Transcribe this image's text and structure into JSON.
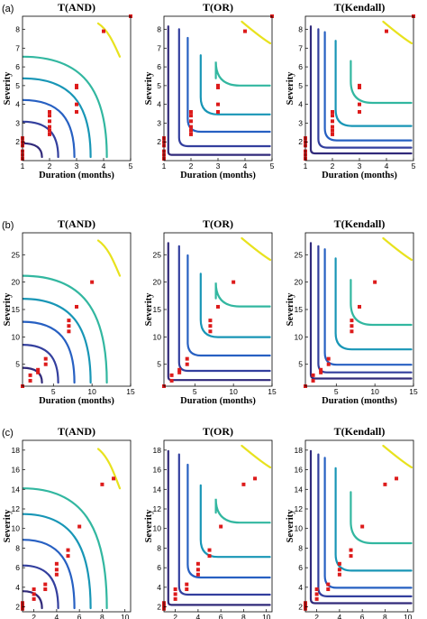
{
  "rows": [
    {
      "label": "(a)",
      "xlim": [
        1,
        5
      ],
      "ylim": [
        1,
        8.7
      ],
      "xticks": [
        1,
        2,
        3,
        4,
        5
      ],
      "yticks": [
        2,
        3,
        4,
        5,
        6,
        7,
        8
      ],
      "xlabel": "Duration (months)",
      "ylabel": "Severity",
      "points": [
        [
          1,
          1.1
        ],
        [
          1,
          1.3
        ],
        [
          1,
          1.5
        ],
        [
          1,
          1.8
        ],
        [
          1,
          2.0
        ],
        [
          1,
          2.2
        ],
        [
          2,
          2.4
        ],
        [
          2,
          2.6
        ],
        [
          2,
          2.8
        ],
        [
          2,
          3.1
        ],
        [
          2,
          3.4
        ],
        [
          2,
          3.6
        ],
        [
          3,
          3.6
        ],
        [
          3,
          4.0
        ],
        [
          3,
          4.9
        ],
        [
          3,
          5.0
        ],
        [
          4,
          7.9
        ],
        [
          5,
          8.7
        ]
      ]
    },
    {
      "label": "(b)",
      "xlim": [
        1,
        15
      ],
      "ylim": [
        1,
        29
      ],
      "xticks": [
        5,
        10,
        15
      ],
      "yticks": [
        5,
        10,
        15,
        20,
        25
      ],
      "xlabel": "Duration (months)",
      "ylabel": "Severity",
      "points": [
        [
          1,
          1
        ],
        [
          2,
          2
        ],
        [
          2,
          3
        ],
        [
          3,
          3.5
        ],
        [
          3,
          4
        ],
        [
          4,
          5
        ],
        [
          4,
          6
        ],
        [
          7,
          11
        ],
        [
          7,
          12
        ],
        [
          7,
          13
        ],
        [
          8,
          15.5
        ],
        [
          10,
          20
        ]
      ]
    },
    {
      "label": "(c)",
      "xlim": [
        1,
        10.5
      ],
      "ylim": [
        1.5,
        19
      ],
      "xticks": [
        2,
        4,
        6,
        8,
        10
      ],
      "yticks": [
        2,
        4,
        6,
        8,
        10,
        12,
        14,
        16,
        18
      ],
      "xlabel": "Duration (months)",
      "ylabel": "Severity",
      "points": [
        [
          1,
          1.8
        ],
        [
          1,
          2.0
        ],
        [
          1,
          2.2
        ],
        [
          1,
          2.4
        ],
        [
          2,
          2.8
        ],
        [
          2,
          3.3
        ],
        [
          2,
          3.8
        ],
        [
          3,
          3.8
        ],
        [
          3,
          4.3
        ],
        [
          4,
          5.3
        ],
        [
          4,
          5.8
        ],
        [
          4,
          6.4
        ],
        [
          5,
          7.2
        ],
        [
          5,
          7.8
        ],
        [
          6,
          10.2
        ],
        [
          8,
          14.5
        ],
        [
          9,
          15.1
        ]
      ]
    }
  ],
  "chart_data": [
    {
      "type": "line",
      "title": "T(AND)",
      "xlabel": "Duration (months)",
      "ylabel": "Severity",
      "xlim": [
        1,
        5
      ],
      "ylim": [
        1,
        8.7
      ],
      "contour_levels": [
        2,
        5,
        10,
        20,
        50,
        100
      ],
      "colormap": "parula"
    },
    {
      "type": "line",
      "title": "T(OR)",
      "xlabel": "Duration (months)",
      "ylabel": "Severity",
      "xlim": [
        1,
        5
      ],
      "ylim": [
        1,
        8.7
      ],
      "contour_levels": [
        2,
        5,
        10,
        20,
        50,
        100
      ],
      "colormap": "parula"
    },
    {
      "type": "line",
      "title": "T(Kendall)",
      "xlabel": "Duration (months)",
      "ylabel": "Severity",
      "xlim": [
        1,
        5
      ],
      "ylim": [
        1,
        8.7
      ],
      "contour_levels": [
        2,
        5,
        10,
        20,
        50,
        100
      ],
      "colormap": "parula"
    },
    {
      "type": "line",
      "title": "T(AND)",
      "xlabel": "Duration (months)",
      "ylabel": "Severity",
      "xlim": [
        1,
        15
      ],
      "ylim": [
        1,
        29
      ],
      "contour_levels": [
        2,
        5,
        10,
        20,
        50,
        100
      ],
      "colormap": "parula"
    },
    {
      "type": "line",
      "title": "T(OR)",
      "xlabel": "Duration (months)",
      "ylabel": "Severity",
      "xlim": [
        1,
        15
      ],
      "ylim": [
        1,
        29
      ],
      "contour_levels": [
        2,
        5,
        10,
        20,
        50,
        100
      ],
      "colormap": "parula"
    },
    {
      "type": "line",
      "title": "T(Kendall)",
      "xlabel": "Duration (months)",
      "ylabel": "Severity",
      "xlim": [
        1,
        15
      ],
      "ylim": [
        1,
        29
      ],
      "contour_levels": [
        2,
        5,
        10,
        20,
        50,
        100
      ],
      "colormap": "parula"
    },
    {
      "type": "line",
      "title": "T(AND)",
      "xlabel": "Duration (months)",
      "ylabel": "Severity",
      "xlim": [
        1,
        10.5
      ],
      "ylim": [
        1.5,
        19
      ],
      "contour_levels": [
        2,
        5,
        10,
        20,
        50,
        100
      ],
      "colormap": "parula"
    },
    {
      "type": "line",
      "title": "T(OR)",
      "xlabel": "Duration (months)",
      "ylabel": "Severity",
      "xlim": [
        1,
        10.5
      ],
      "ylim": [
        1.5,
        19
      ],
      "contour_levels": [
        2,
        5,
        10,
        20,
        50,
        100
      ],
      "colormap": "parula"
    },
    {
      "type": "line",
      "title": "T(Kendall)",
      "xlabel": "Duration (months)",
      "ylabel": "Severity",
      "xlim": [
        1,
        10.5
      ],
      "ylim": [
        1.5,
        19
      ],
      "contour_levels": [
        2,
        5,
        10,
        20,
        50,
        100
      ],
      "colormap": "parula"
    }
  ],
  "contour_colors": [
    "#312a7a",
    "#333f9e",
    "#2760c2",
    "#1896b6",
    "#32b7a0",
    "#e8e21e"
  ],
  "point_color": "#dd1b1b"
}
